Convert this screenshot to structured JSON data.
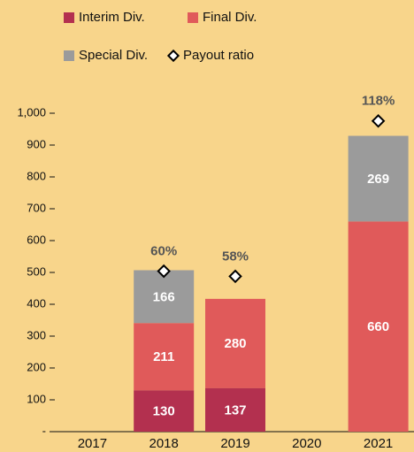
{
  "chart_data": {
    "type": "bar",
    "stacked": true,
    "categories": [
      "2017",
      "2018",
      "2019",
      "2020",
      "2021"
    ],
    "series": [
      {
        "name": "Interim Div.",
        "color": "#b3304f",
        "values": [
          null,
          130,
          137,
          null,
          null
        ]
      },
      {
        "name": "Final Div.",
        "color": "#e05a5a",
        "values": [
          null,
          211,
          280,
          null,
          660
        ]
      },
      {
        "name": "Special Div.",
        "color": "#9b9b9b",
        "values": [
          null,
          166,
          null,
          null,
          269
        ]
      },
      {
        "name": "Payout ratio",
        "type": "scatter",
        "axis": "y2",
        "color": "#000000",
        "values": [
          null,
          60,
          58,
          null,
          118
        ],
        "value_labels": [
          null,
          "60%",
          "58%",
          null,
          "118%"
        ]
      }
    ],
    "ylim": [
      0,
      1000
    ],
    "yticks": [
      {
        "value": 0,
        "label": "-"
      },
      100,
      200,
      300,
      400,
      500,
      600,
      700,
      800,
      900,
      {
        "value": 1000,
        "label": "1,000"
      }
    ],
    "y2lim": [
      -2,
      121
    ]
  }
}
